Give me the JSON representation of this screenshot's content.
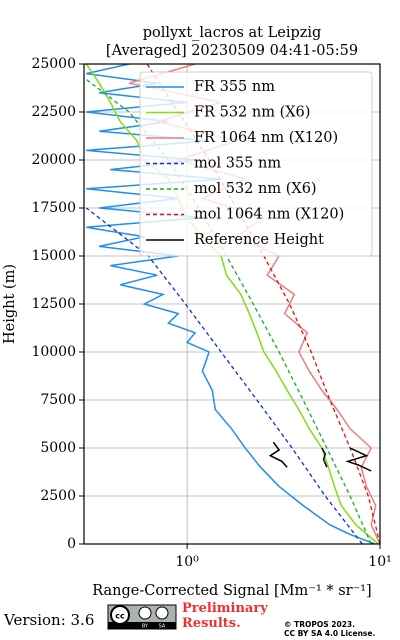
{
  "chart_data": {
    "type": "line",
    "title": "pollyxt_lacros at Leipzig",
    "subtitle": "[Averaged] 20230509 04:41-05:59",
    "xlabel": "Range-Corrected Signal [Mm⁻¹ * sr⁻¹]",
    "ylabel": "Height (m)",
    "xscale": "log",
    "grid": true,
    "legend": "upper right",
    "xlim": [
      0.292,
      10
    ],
    "ylim": [
      0,
      25000
    ],
    "xticks": [
      {
        "value": 1,
        "label": "10⁰"
      },
      {
        "value": 10,
        "label": "10¹"
      }
    ],
    "yticks": [
      0,
      2500,
      5000,
      7500,
      10000,
      12500,
      15000,
      17500,
      20000,
      22500,
      25000
    ],
    "series": [
      {
        "name": "FR 355 nm",
        "color": "#1f8ef0",
        "dash": false,
        "x": [
          9.4,
          7.0,
          5.5,
          4.0,
          3.0,
          2.4,
          2.0,
          1.7,
          1.4,
          1.35,
          1.2,
          1.3,
          1.0,
          1.1,
          0.8,
          0.9,
          0.6,
          0.75,
          0.45,
          0.7,
          0.4,
          0.9,
          0.35,
          0.6,
          0.3,
          1.2,
          0.35,
          0.9,
          0.3,
          1.5,
          0.4,
          1.1,
          0.3,
          1.3,
          0.35,
          0.8,
          0.3,
          1.0,
          0.35,
          0.7,
          0.3,
          0.5
        ],
        "y": [
          0,
          500,
          1000,
          2000,
          3000,
          4000,
          5000,
          6000,
          7000,
          8000,
          9000,
          10000,
          10500,
          11000,
          11500,
          12000,
          12500,
          13000,
          13500,
          14000,
          14500,
          15000,
          15500,
          16000,
          16500,
          17000,
          17500,
          18000,
          18500,
          19000,
          19500,
          20000,
          20500,
          21000,
          21500,
          22000,
          22500,
          23000,
          23500,
          24000,
          24500,
          25000
        ]
      },
      {
        "name": "FR 532 nm (X6)",
        "color": "#7ee012",
        "dash": false,
        "x": [
          9.8,
          7.5,
          6.3,
          5.8,
          5.4,
          5.0,
          4.3,
          3.8,
          3.3,
          2.9,
          2.5,
          2.3,
          2.1,
          1.9,
          1.6,
          1.5,
          1.2,
          1.0,
          0.9,
          0.8,
          0.6,
          0.55,
          0.45,
          0.4,
          0.35,
          0.3
        ],
        "y": [
          0,
          1000,
          2000,
          3000,
          4000,
          5000,
          6000,
          7000,
          8000,
          9000,
          10000,
          11000,
          12000,
          13000,
          14000,
          15000,
          16000,
          17000,
          18000,
          19000,
          20000,
          21000,
          22000,
          23000,
          24000,
          25000
        ]
      },
      {
        "name": "FR 1064 nm (X120)",
        "color": "#f07c7c",
        "dash": false,
        "x": [
          10,
          9.0,
          9.5,
          8.5,
          8.0,
          9.0,
          7.0,
          6.0,
          5.0,
          4.3,
          3.8,
          4.2,
          3.2,
          3.6,
          2.6,
          3.0,
          1.8,
          2.5,
          1.2,
          2.0,
          0.9,
          1.8,
          0.7,
          1.5,
          0.5,
          1.1
        ],
        "y": [
          0,
          1000,
          2000,
          3000,
          4000,
          5000,
          6000,
          7000,
          8000,
          9000,
          10000,
          11000,
          12000,
          13000,
          14000,
          15000,
          16000,
          17000,
          18000,
          19000,
          20000,
          21000,
          22000,
          23000,
          24000,
          25000
        ]
      },
      {
        "name": "mol 355 nm",
        "color": "#1030d0",
        "dash": true,
        "x": [
          8.1,
          5.2,
          3.5,
          2.3,
          1.5,
          0.98,
          0.63,
          0.3
        ],
        "y": [
          0,
          2500,
          5000,
          7500,
          10000,
          12500,
          15000,
          17500
        ]
      },
      {
        "name": "mol 532 nm (X6)",
        "color": "#10b020",
        "dash": true,
        "x": [
          9.0,
          7.0,
          5.3,
          4.0,
          3.0,
          2.2,
          1.6,
          1.15,
          0.8,
          0.5,
          0.3
        ],
        "y": [
          0,
          2500,
          5000,
          7500,
          10000,
          12500,
          15000,
          17500,
          20000,
          22500,
          24200
        ]
      },
      {
        "name": "mol 1064 nm (X120)",
        "color": "#e01010",
        "dash": true,
        "x": [
          10,
          8.7,
          7.0,
          5.5,
          4.4,
          3.4,
          2.5,
          1.8,
          1.3,
          0.9,
          0.62
        ],
        "y": [
          0,
          2500,
          5000,
          7500,
          10000,
          12500,
          15000,
          17500,
          20000,
          22500,
          25000
        ]
      },
      {
        "name": "Reference Height",
        "color": "#000000",
        "dash": false,
        "x": [
          2.8,
          3.0,
          2.7,
          3.1,
          3.3,
          null,
          5.0,
          5.2,
          5.1,
          5.3,
          null,
          7.0,
          8.5,
          6.8,
          7.8,
          9.0
        ],
        "y": [
          5300,
          4900,
          4600,
          4300,
          4000,
          null,
          5000,
          4700,
          4400,
          4000,
          null,
          5000,
          4600,
          4300,
          4100,
          3800
        ]
      }
    ]
  },
  "footer": {
    "version": "Version: 3.6",
    "badge": [
      "cc",
      "BY",
      "SA"
    ],
    "status": "Preliminary Results.",
    "copyright": "© TROPOS 2023.",
    "license": "CC BY SA 4.0 License."
  }
}
